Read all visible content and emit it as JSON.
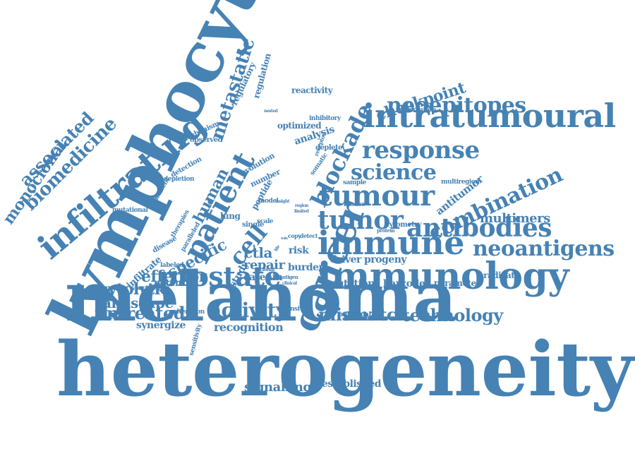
{
  "color": "#4682b4",
  "words": [
    "heterogeneity",
    "melanoma",
    "lymphocyte",
    "cancer",
    "immunology",
    "immune",
    "intratumoural",
    "infiltrating",
    "patient",
    "tumour",
    "tumor",
    "prostate",
    "antibodies",
    "blockade",
    "neoepitopes",
    "response",
    "combination",
    "neoantigens",
    "science",
    "cell",
    "activity",
    "mismatch",
    "technology",
    "metastatic",
    "biomedicine",
    "associated",
    "monoclonal",
    "checkpoint",
    "specific",
    "effector",
    "cytolytic",
    "landscape",
    "untreated",
    "human",
    "multimers",
    "ctla",
    "repair",
    "recognition",
    "signalling",
    "established",
    "antitumor",
    "driver",
    "progeny",
    "mutation",
    "barcodes",
    "parameter",
    "eradicate",
    "risk",
    "catenin",
    "burden",
    "study",
    "potential",
    "synergize",
    "infiltrate",
    "regulatory",
    "regulation",
    "reactivity",
    "analysis",
    "optimized",
    "evolution",
    "number",
    "peptide",
    "lung",
    "mechanism",
    "observed",
    "detection",
    "depletion",
    "mutational",
    "underwent",
    "therapies",
    "paralleled",
    "disease",
    "labeled",
    "specificities",
    "alteration",
    "sensitivity",
    "extensive",
    "individual",
    "multiregion",
    "modulation",
    "inhibitory",
    "deplete",
    "somatic",
    "receptor",
    "sample",
    "mouse",
    "model",
    "scale",
    "single",
    "cytometry",
    "protein",
    "copy",
    "detect",
    "clonal",
    "antigen",
    "insight",
    "region",
    "limited",
    "clinical",
    "tells",
    "life",
    "nested"
  ]
}
